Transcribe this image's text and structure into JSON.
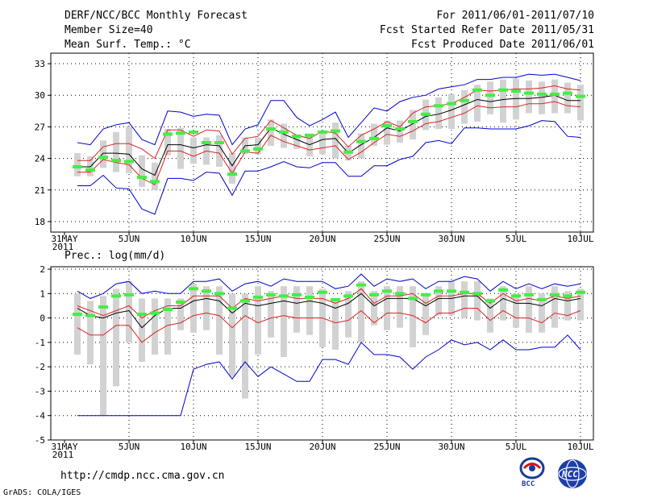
{
  "header": {
    "title": "DERF/NCC/BCC Monthly Forecast",
    "member_size": "Member Size=40",
    "variable": "Mean Surf. Temp.: °C",
    "period": "For 2011/06/01-2011/07/10",
    "refer_date": "Fcst Started Refer Date 2011/05/31",
    "produced_date": "Fcst Produced Date 2011/06/01"
  },
  "footer": {
    "url": "http://cmdp.ncc.cma.gov.cn",
    "credit": "GrADS: COLA/IGES",
    "logo_bcc": "BCC",
    "logo_ncc": "NCC"
  },
  "x_axis": {
    "ticks": [
      {
        "day": 0,
        "label": "31MAY",
        "sub": "2011"
      },
      {
        "day": 5,
        "label": "5JUN"
      },
      {
        "day": 10,
        "label": "10JUN"
      },
      {
        "day": 15,
        "label": "15JUN"
      },
      {
        "day": 20,
        "label": "20JUN"
      },
      {
        "day": 25,
        "label": "25JUN"
      },
      {
        "day": 30,
        "label": "30JUN"
      },
      {
        "day": 35,
        "label": "5JUL"
      },
      {
        "day": 40,
        "label": "10JUL"
      }
    ]
  },
  "colors": {
    "ensemble_range": "#0000cc",
    "spread": "#dd2222",
    "ensemble_mean": "#000000",
    "boxes": "#d2d2d2",
    "markers": "#44ee44"
  },
  "chart_data": [
    {
      "type": "line",
      "title": "Mean Surf. Temp.: °C",
      "ylim": [
        17,
        34
      ],
      "yticks": [
        18,
        21,
        24,
        27,
        30,
        33
      ],
      "days": [
        1,
        2,
        3,
        4,
        5,
        6,
        7,
        8,
        9,
        10,
        11,
        12,
        13,
        14,
        15,
        16,
        17,
        18,
        19,
        20,
        21,
        22,
        23,
        24,
        25,
        26,
        27,
        28,
        29,
        30,
        31,
        32,
        33,
        34,
        35,
        36,
        37,
        38,
        39,
        40
      ],
      "series": [
        {
          "name": "max",
          "values": [
            25.5,
            25.3,
            26.8,
            27.2,
            27.4,
            25.8,
            25.3,
            28.5,
            28.4,
            28.0,
            28.2,
            28.1,
            25.3,
            26.8,
            27.2,
            29.5,
            29.5,
            27.9,
            27.1,
            27.7,
            28.4,
            26.0,
            27.4,
            28.8,
            28.5,
            29.4,
            29.8,
            30.0,
            30.6,
            30.8,
            31.0,
            31.5,
            31.5,
            31.7,
            31.7,
            32.0,
            31.9,
            32.0,
            31.7,
            31.4
          ]
        },
        {
          "name": "upper",
          "values": [
            23.8,
            23.8,
            25.1,
            25.4,
            25.4,
            24.9,
            24.0,
            26.7,
            26.7,
            26.1,
            26.7,
            26.6,
            24.4,
            25.9,
            26.1,
            27.6,
            26.9,
            26.2,
            25.9,
            26.6,
            26.4,
            25.1,
            26.2,
            26.8,
            27.5,
            27.0,
            28.3,
            28.9,
            29.0,
            29.2,
            29.8,
            30.5,
            30.4,
            30.5,
            30.6,
            30.6,
            30.7,
            30.9,
            30.6,
            30.5
          ]
        },
        {
          "name": "mean",
          "values": [
            23.2,
            23.2,
            24.5,
            24.5,
            24.4,
            23.0,
            22.4,
            25.3,
            25.3,
            25.0,
            25.3,
            25.2,
            23.3,
            25.2,
            25.3,
            26.9,
            26.3,
            25.8,
            25.3,
            25.8,
            25.9,
            24.5,
            25.3,
            26.0,
            26.9,
            26.6,
            27.3,
            28.0,
            28.2,
            28.6,
            29.1,
            29.6,
            29.4,
            29.6,
            29.7,
            29.7,
            29.8,
            30.0,
            29.5,
            29.5
          ]
        },
        {
          "name": "lower",
          "values": [
            22.7,
            22.7,
            23.9,
            23.6,
            23.4,
            22.1,
            21.5,
            24.7,
            24.7,
            24.2,
            24.7,
            24.5,
            22.6,
            24.6,
            24.5,
            26.2,
            25.6,
            25.2,
            24.8,
            25.0,
            25.2,
            23.9,
            24.6,
            25.5,
            26.3,
            26.1,
            26.6,
            27.3,
            27.5,
            27.9,
            28.3,
            29.0,
            28.8,
            28.9,
            28.9,
            29.2,
            29.2,
            29.4,
            29.0,
            28.9
          ]
        },
        {
          "name": "min",
          "values": [
            21.4,
            21.4,
            22.4,
            21.2,
            21.1,
            19.2,
            18.7,
            22.1,
            22.1,
            21.9,
            22.7,
            22.6,
            20.5,
            22.8,
            22.8,
            23.2,
            23.7,
            23.2,
            23.1,
            23.6,
            23.6,
            22.3,
            22.3,
            23.3,
            23.3,
            23.9,
            24.2,
            25.5,
            25.7,
            25.4,
            26.9,
            26.9,
            26.8,
            26.8,
            26.8,
            27.1,
            27.6,
            27.5,
            26.1,
            26.0
          ]
        },
        {
          "name": "box_high",
          "values": [
            24.5,
            24.2,
            25.7,
            26.5,
            27.0,
            24.3,
            23.6,
            26.8,
            26.9,
            26.0,
            26.0,
            26.2,
            24.5,
            26.0,
            26.0,
            27.7,
            27.3,
            26.3,
            26.1,
            26.5,
            27.4,
            25.2,
            26.4,
            27.3,
            27.6,
            27.6,
            28.6,
            29.6,
            29.8,
            30.1,
            30.5,
            31.0,
            31.3,
            31.5,
            31.6,
            31.4,
            31.3,
            31.5,
            31.2,
            31.0
          ]
        },
        {
          "name": "box_low",
          "values": [
            22.3,
            22.3,
            23.1,
            22.7,
            22.6,
            21.3,
            21.0,
            24.3,
            23.0,
            23.5,
            23.4,
            23.2,
            21.6,
            24.4,
            24.4,
            25.2,
            25.0,
            24.9,
            24.2,
            24.4,
            24.0,
            23.8,
            24.0,
            25.2,
            25.3,
            25.5,
            25.8,
            26.7,
            26.8,
            26.8,
            27.3,
            27.5,
            28.2,
            27.4,
            27.7,
            28.3,
            28.2,
            28.3,
            28.3,
            27.6
          ]
        },
        {
          "name": "marker",
          "values": [
            23.2,
            22.9,
            24.1,
            23.8,
            23.7,
            22.2,
            21.8,
            26.3,
            26.4,
            26.5,
            25.5,
            25.5,
            22.5,
            24.7,
            24.9,
            26.8,
            26.5,
            26.1,
            26.2,
            26.5,
            26.6,
            24.6,
            25.6,
            25.9,
            27.1,
            26.8,
            27.5,
            28.2,
            29.0,
            29.2,
            29.5,
            30.5,
            30.0,
            30.5,
            30.4,
            30.2,
            30.1,
            30.1,
            30.2,
            29.9
          ]
        }
      ]
    },
    {
      "type": "line",
      "title": "Prec.: log(mm/d)",
      "ylim": [
        -5,
        2.1
      ],
      "yticks": [
        -5,
        -4,
        -3,
        -2,
        -1,
        0,
        1,
        2
      ],
      "days": [
        1,
        2,
        3,
        4,
        5,
        6,
        7,
        8,
        9,
        10,
        11,
        12,
        13,
        14,
        15,
        16,
        17,
        18,
        19,
        20,
        21,
        22,
        23,
        24,
        25,
        26,
        27,
        28,
        29,
        30,
        31,
        32,
        33,
        34,
        35,
        36,
        37,
        38,
        39,
        40
      ],
      "series": [
        {
          "name": "max",
          "values": [
            1.1,
            0.8,
            1.0,
            1.4,
            1.5,
            1.0,
            1.1,
            1.0,
            1.0,
            1.5,
            1.5,
            1.6,
            1.1,
            1.4,
            1.5,
            1.3,
            1.6,
            1.5,
            1.5,
            1.5,
            1.2,
            1.3,
            1.8,
            1.3,
            1.6,
            1.5,
            1.6,
            1.2,
            1.5,
            1.5,
            1.7,
            1.6,
            1.1,
            1.5,
            1.2,
            1.4,
            1.2,
            1.4,
            1.3,
            1.4
          ]
        },
        {
          "name": "upper",
          "values": [
            0.5,
            0.3,
            0.1,
            0.3,
            0.5,
            0.0,
            0.3,
            0.5,
            0.5,
            0.9,
            0.9,
            0.9,
            0.4,
            0.8,
            0.7,
            0.8,
            0.9,
            0.8,
            0.8,
            0.8,
            0.6,
            0.8,
            1.2,
            0.6,
            0.9,
            0.9,
            1.0,
            0.6,
            0.9,
            0.9,
            1.0,
            1.0,
            0.6,
            1.0,
            0.7,
            0.8,
            0.7,
            0.9,
            0.8,
            0.9
          ]
        },
        {
          "name": "mean",
          "values": [
            0.4,
            0.1,
            0.0,
            0.2,
            0.3,
            -0.4,
            0.1,
            0.4,
            0.4,
            0.7,
            0.8,
            0.7,
            0.2,
            0.6,
            0.5,
            0.6,
            0.7,
            0.6,
            0.7,
            0.6,
            0.4,
            0.6,
            1.0,
            0.5,
            0.8,
            0.8,
            0.8,
            0.5,
            0.8,
            0.8,
            0.9,
            0.9,
            0.4,
            0.8,
            0.6,
            0.6,
            0.5,
            0.8,
            0.7,
            0.8
          ]
        },
        {
          "name": "lower",
          "values": [
            -0.4,
            -0.7,
            -0.7,
            -0.3,
            -0.3,
            -1.0,
            -0.6,
            -0.3,
            -0.2,
            0.1,
            0.2,
            0.1,
            -0.4,
            0.1,
            -0.2,
            0.0,
            0.1,
            0.0,
            0.0,
            0.0,
            -0.2,
            -0.1,
            0.3,
            -0.2,
            0.2,
            0.2,
            0.1,
            -0.2,
            0.2,
            0.2,
            0.4,
            0.4,
            -0.1,
            0.3,
            0.0,
            0.0,
            -0.2,
            0.2,
            0.1,
            0.3
          ]
        },
        {
          "name": "min",
          "values": [
            -4.0,
            -4.0,
            -4.0,
            -4.0,
            -4.0,
            -4.0,
            -4.0,
            -4.0,
            -4.0,
            -2.1,
            -1.9,
            -1.8,
            -2.5,
            -1.8,
            -2.4,
            -2.0,
            -2.3,
            -2.6,
            -2.6,
            -1.7,
            -1.7,
            -1.9,
            -1.0,
            -1.5,
            -1.5,
            -1.6,
            -2.1,
            -1.6,
            -1.3,
            -0.9,
            -1.1,
            -1.0,
            -1.3,
            -0.9,
            -1.3,
            -1.3,
            -1.2,
            -1.2,
            -0.7,
            -1.3
          ]
        },
        {
          "name": "box_high",
          "values": [
            1.0,
            0.7,
            0.9,
            1.2,
            1.5,
            0.8,
            0.8,
            0.8,
            0.8,
            1.4,
            1.3,
            1.3,
            1.0,
            1.0,
            1.3,
            1.1,
            1.3,
            1.3,
            1.3,
            1.2,
            0.8,
            1.1,
            1.5,
            1.1,
            1.3,
            1.3,
            1.3,
            0.9,
            1.3,
            1.5,
            1.5,
            1.5,
            0.8,
            1.3,
            1.0,
            1.3,
            1.0,
            1.3,
            1.1,
            1.2
          ]
        },
        {
          "name": "box_low",
          "values": [
            -1.5,
            -1.9,
            -4.0,
            -2.8,
            -1.0,
            -1.8,
            -1.5,
            -1.5,
            -0.5,
            -0.6,
            -0.5,
            -1.5,
            -2.4,
            -3.3,
            -1.5,
            -0.8,
            -1.6,
            -0.6,
            -0.7,
            -1.2,
            -1.3,
            -0.8,
            -1.0,
            -0.3,
            -0.5,
            -0.4,
            -1.2,
            -0.7,
            0.1,
            0.1,
            0.0,
            -0.1,
            -0.6,
            -0.1,
            -0.4,
            -0.6,
            -0.6,
            -0.4,
            -0.1,
            -0.1
          ]
        },
        {
          "name": "marker",
          "values": [
            0.15,
            0.1,
            0.45,
            0.9,
            0.95,
            0.15,
            0.2,
            0.35,
            0.65,
            1.2,
            1.1,
            1.0,
            0.4,
            0.7,
            0.85,
            0.95,
            0.9,
            0.95,
            0.85,
            1.05,
            0.75,
            0.9,
            1.35,
            0.95,
            1.1,
            1.0,
            0.8,
            0.95,
            1.1,
            1.1,
            1.05,
            1.0,
            0.7,
            1.15,
            0.9,
            0.95,
            0.75,
            0.95,
            0.9,
            1.05
          ]
        }
      ]
    }
  ]
}
